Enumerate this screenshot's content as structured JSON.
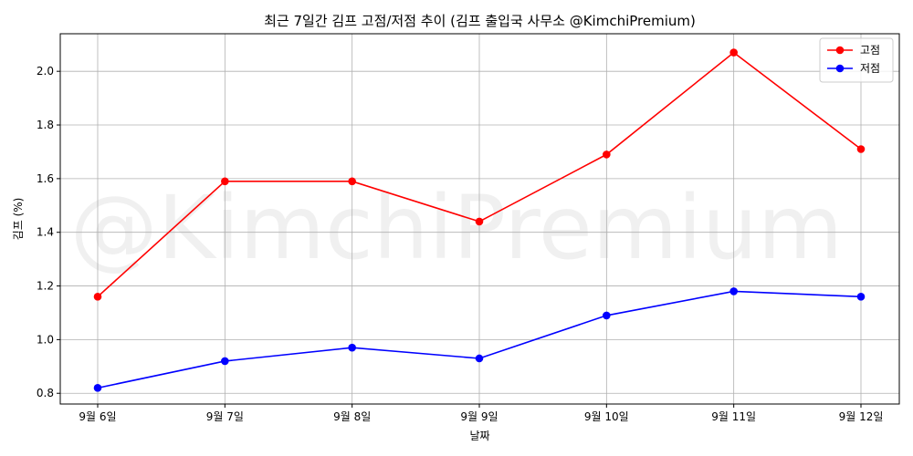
{
  "chart_data": {
    "type": "line",
    "title": "최근 7일간 김프 고점/저점 추이 (김프 출입국 사무소 @KimchiPremium)",
    "xlabel": "날짜",
    "ylabel": "김프 (%)",
    "categories": [
      "9월 6일",
      "9월 7일",
      "9월 8일",
      "9월 9일",
      "9월 10일",
      "9월 11일",
      "9월 12일"
    ],
    "series": [
      {
        "name": "고점",
        "color": "#ff0000",
        "values": [
          1.16,
          1.59,
          1.59,
          1.44,
          1.69,
          2.07,
          1.71
        ]
      },
      {
        "name": "저점",
        "color": "#0000ff",
        "values": [
          0.82,
          0.92,
          0.97,
          0.93,
          1.09,
          1.18,
          1.16
        ]
      }
    ],
    "ylim": [
      0.76,
      2.14
    ],
    "yticks": [
      0.8,
      1.0,
      1.2,
      1.4,
      1.6,
      1.8,
      2.0
    ],
    "grid": true,
    "legend_position": "top-right",
    "watermark": "@KimchiPremium"
  }
}
